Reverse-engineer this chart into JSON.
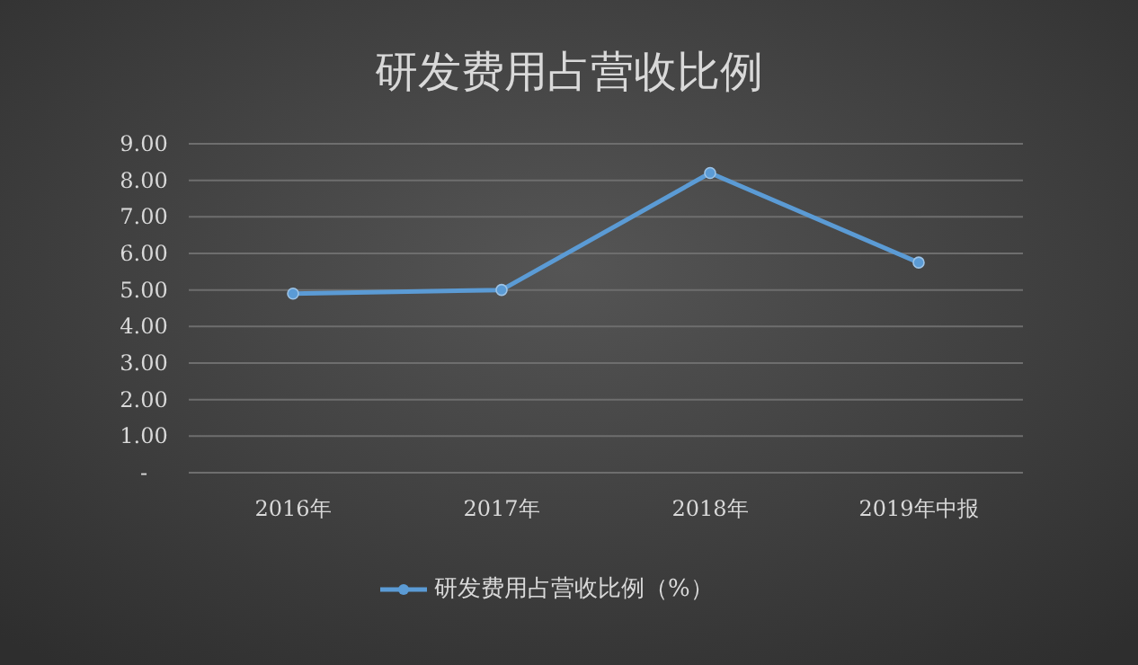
{
  "chart_data": {
    "type": "line",
    "title": "研发费用占营收比例",
    "categories": [
      "2016年",
      "2017年",
      "2018年",
      "2019年中报"
    ],
    "series": [
      {
        "name": "研发费用占营收比例（%）",
        "color": "#5b9bd5",
        "values": [
          4.9,
          5.0,
          8.2,
          5.75
        ]
      }
    ],
    "ylim": [
      0,
      9
    ],
    "yticks": [
      {
        "value": 0,
        "label": "-"
      },
      {
        "value": 1,
        "label": "1.00"
      },
      {
        "value": 2,
        "label": "2.00"
      },
      {
        "value": 3,
        "label": "3.00"
      },
      {
        "value": 4,
        "label": "4.00"
      },
      {
        "value": 5,
        "label": "5.00"
      },
      {
        "value": 6,
        "label": "6.00"
      },
      {
        "value": 7,
        "label": "7.00"
      },
      {
        "value": 8,
        "label": "8.00"
      },
      {
        "value": 9,
        "label": "9.00"
      }
    ],
    "grid": "y",
    "legend": "bottom",
    "marker": "circle",
    "line_style": "solid"
  }
}
